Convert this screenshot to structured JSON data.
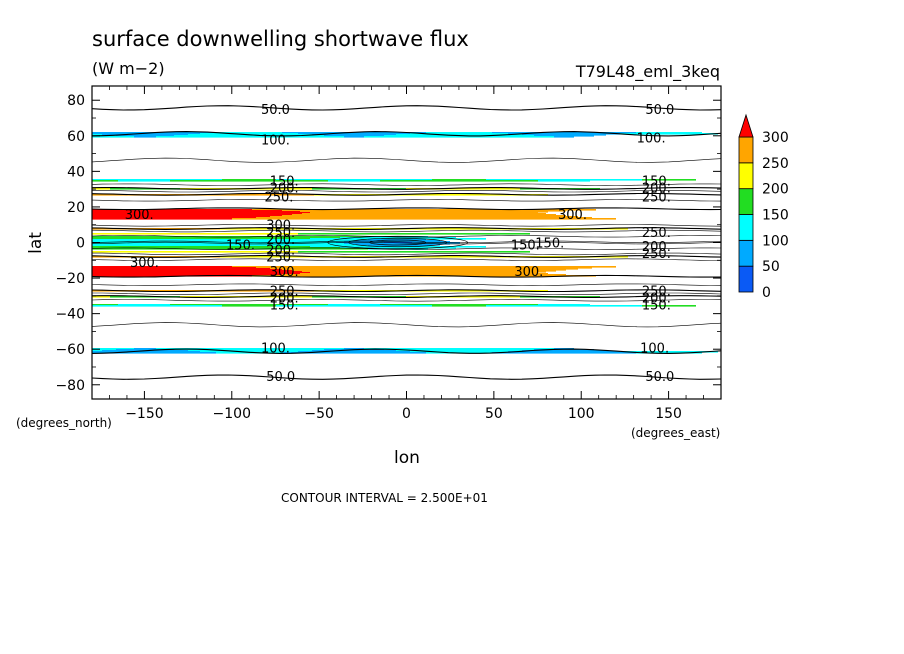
{
  "chart_data": {
    "type": "contour",
    "title": "surface downwelling shortwave flux",
    "units": "(W m−2)",
    "experiment": "T79L48_eml_3keq",
    "xlabel": "lon",
    "ylabel": "lat",
    "x_units": "(degrees_east)",
    "y_units": "(degrees_north)",
    "xlim": [
      -180,
      180
    ],
    "ylim": [
      -88,
      88
    ],
    "x_ticks": [
      -150,
      -100,
      -50,
      0,
      50,
      100,
      150
    ],
    "y_ticks": [
      -80,
      -60,
      -40,
      -20,
      0,
      20,
      40,
      60,
      80
    ],
    "x_tick_labels": [
      "−150",
      "−100",
      "−50",
      "0",
      "50",
      "100",
      "150"
    ],
    "y_tick_labels": [
      "−80",
      "−60",
      "−40",
      "−20",
      "0",
      "20",
      "40",
      "60",
      "80"
    ],
    "contour_interval_text": "CONTOUR INTERVAL = 2.500E+01",
    "colorbar": {
      "levels": [
        0,
        50,
        100,
        150,
        200,
        250,
        300
      ],
      "level_labels": [
        "0",
        "50",
        "100",
        "150",
        "200",
        "250",
        "300"
      ],
      "colors": [
        "#0a5af5",
        "#00aaff",
        "#00ffff",
        "#22dd22",
        "#ffff00",
        "#ffa500",
        "#ff0000"
      ],
      "extend": "max"
    },
    "zonal_profile": [
      {
        "lat": -88,
        "value": 30
      },
      {
        "lat": -80,
        "value": 45
      },
      {
        "lat": -74,
        "value": 52
      },
      {
        "lat": -70,
        "value": 75
      },
      {
        "lat": -62,
        "value": 98
      },
      {
        "lat": -56,
        "value": 112
      },
      {
        "lat": -44,
        "value": 128
      },
      {
        "lat": -38,
        "value": 140
      },
      {
        "lat": -35,
        "value": 150
      },
      {
        "lat": -32,
        "value": 180
      },
      {
        "lat": -30,
        "value": 205
      },
      {
        "lat": -28,
        "value": 240
      },
      {
        "lat": -26,
        "value": 262
      },
      {
        "lat": -22,
        "value": 285
      },
      {
        "lat": -17,
        "value": 310
      },
      {
        "lat": -13,
        "value": 300
      },
      {
        "lat": -9,
        "value": 270
      },
      {
        "lat": -5,
        "value": 200
      },
      {
        "lat": -2,
        "value": 150
      },
      {
        "lat": 0,
        "value": 120
      },
      {
        "lat": 2,
        "value": 150
      },
      {
        "lat": 5,
        "value": 200
      },
      {
        "lat": 9,
        "value": 270
      },
      {
        "lat": 13,
        "value": 300
      },
      {
        "lat": 17,
        "value": 310
      },
      {
        "lat": 22,
        "value": 285
      },
      {
        "lat": 26,
        "value": 262
      },
      {
        "lat": 28,
        "value": 240
      },
      {
        "lat": 30,
        "value": 205
      },
      {
        "lat": 32,
        "value": 180
      },
      {
        "lat": 35,
        "value": 150
      },
      {
        "lat": 38,
        "value": 140
      },
      {
        "lat": 44,
        "value": 128
      },
      {
        "lat": 56,
        "value": 112
      },
      {
        "lat": 62,
        "value": 98
      },
      {
        "lat": 70,
        "value": 75
      },
      {
        "lat": 74,
        "value": 52
      },
      {
        "lat": 80,
        "value": 45
      },
      {
        "lat": 88,
        "value": 30
      }
    ],
    "contour_labels": [
      {
        "text": "50.0",
        "lon": -75,
        "lat": 75
      },
      {
        "text": "50.0",
        "lon": 145,
        "lat": 75
      },
      {
        "text": "100.",
        "lon": -75,
        "lat": 58
      },
      {
        "text": "100.",
        "lon": 140,
        "lat": 59
      },
      {
        "text": "150.",
        "lon": -70,
        "lat": 35
      },
      {
        "text": "200.",
        "lon": -70,
        "lat": 31
      },
      {
        "text": "250.",
        "lon": -73,
        "lat": 26
      },
      {
        "text": "150.",
        "lon": 143,
        "lat": 35
      },
      {
        "text": "200.",
        "lon": 143,
        "lat": 31
      },
      {
        "text": "250.",
        "lon": 143,
        "lat": 26
      },
      {
        "text": "300.",
        "lon": -153,
        "lat": 16
      },
      {
        "text": "300.",
        "lon": 95,
        "lat": 16
      },
      {
        "text": "300.",
        "lon": -72,
        "lat": 10
      },
      {
        "text": "250.",
        "lon": -72,
        "lat": 6
      },
      {
        "text": "200.",
        "lon": -72,
        "lat": 2
      },
      {
        "text": "150.",
        "lon": -95,
        "lat": -1
      },
      {
        "text": "200.",
        "lon": -72,
        "lat": -4
      },
      {
        "text": "250.",
        "lon": -72,
        "lat": -8
      },
      {
        "text": "250.",
        "lon": 143,
        "lat": 6
      },
      {
        "text": "200.",
        "lon": 143,
        "lat": -2
      },
      {
        "text": "250.",
        "lon": 143,
        "lat": -6
      },
      {
        "text": "150.",
        "lon": 68,
        "lat": -1
      },
      {
        "text": "150.",
        "lon": 82,
        "lat": 0
      },
      {
        "text": "300.",
        "lon": -150,
        "lat": -11
      },
      {
        "text": "300.",
        "lon": -70,
        "lat": -16
      },
      {
        "text": "300.",
        "lon": 70,
        "lat": -16
      },
      {
        "text": "250.",
        "lon": -70,
        "lat": -27
      },
      {
        "text": "200.",
        "lon": -70,
        "lat": -31
      },
      {
        "text": "150.",
        "lon": -70,
        "lat": -35
      },
      {
        "text": "250.",
        "lon": 143,
        "lat": -27
      },
      {
        "text": "200.",
        "lon": 143,
        "lat": -31
      },
      {
        "text": "150.",
        "lon": 143,
        "lat": -35
      },
      {
        "text": "100.",
        "lon": -75,
        "lat": -59
      },
      {
        "text": "100.",
        "lon": 142,
        "lat": -59
      },
      {
        "text": "50.0",
        "lon": -72,
        "lat": -75
      },
      {
        "text": "50.0",
        "lon": 145,
        "lat": -75
      }
    ]
  }
}
